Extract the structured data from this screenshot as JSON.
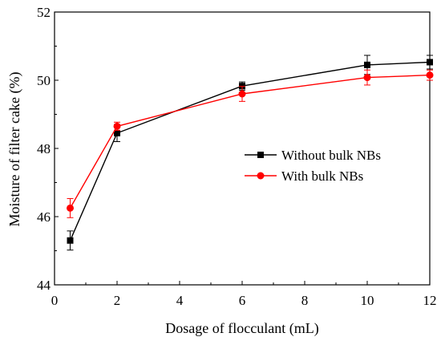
{
  "chart_data": {
    "type": "line",
    "title": "",
    "xlabel": "Dosage of flocculant (mL)",
    "ylabel": "Moisture of filter cake  (%)",
    "xlim": [
      0,
      12
    ],
    "ylim": [
      44,
      52
    ],
    "xticks": [
      0,
      2,
      4,
      6,
      8,
      10,
      12
    ],
    "yticks": [
      44,
      46,
      48,
      50,
      52
    ],
    "grid": false,
    "legend_position": "right",
    "series": [
      {
        "name": "Without bulk NBs",
        "color": "#000000",
        "marker": "square",
        "x": [
          0.5,
          2,
          6,
          10,
          12
        ],
        "y": [
          45.3,
          48.45,
          49.83,
          50.45,
          50.53
        ],
        "err": [
          0.28,
          0.25,
          0.12,
          0.28,
          0.2
        ]
      },
      {
        "name": "With bulk NBs",
        "color": "#ff0000",
        "marker": "circle",
        "x": [
          0.5,
          2,
          6,
          10,
          12
        ],
        "y": [
          46.25,
          48.65,
          49.6,
          50.08,
          50.15
        ],
        "err": [
          0.28,
          0.12,
          0.22,
          0.22,
          0.15
        ]
      }
    ]
  }
}
